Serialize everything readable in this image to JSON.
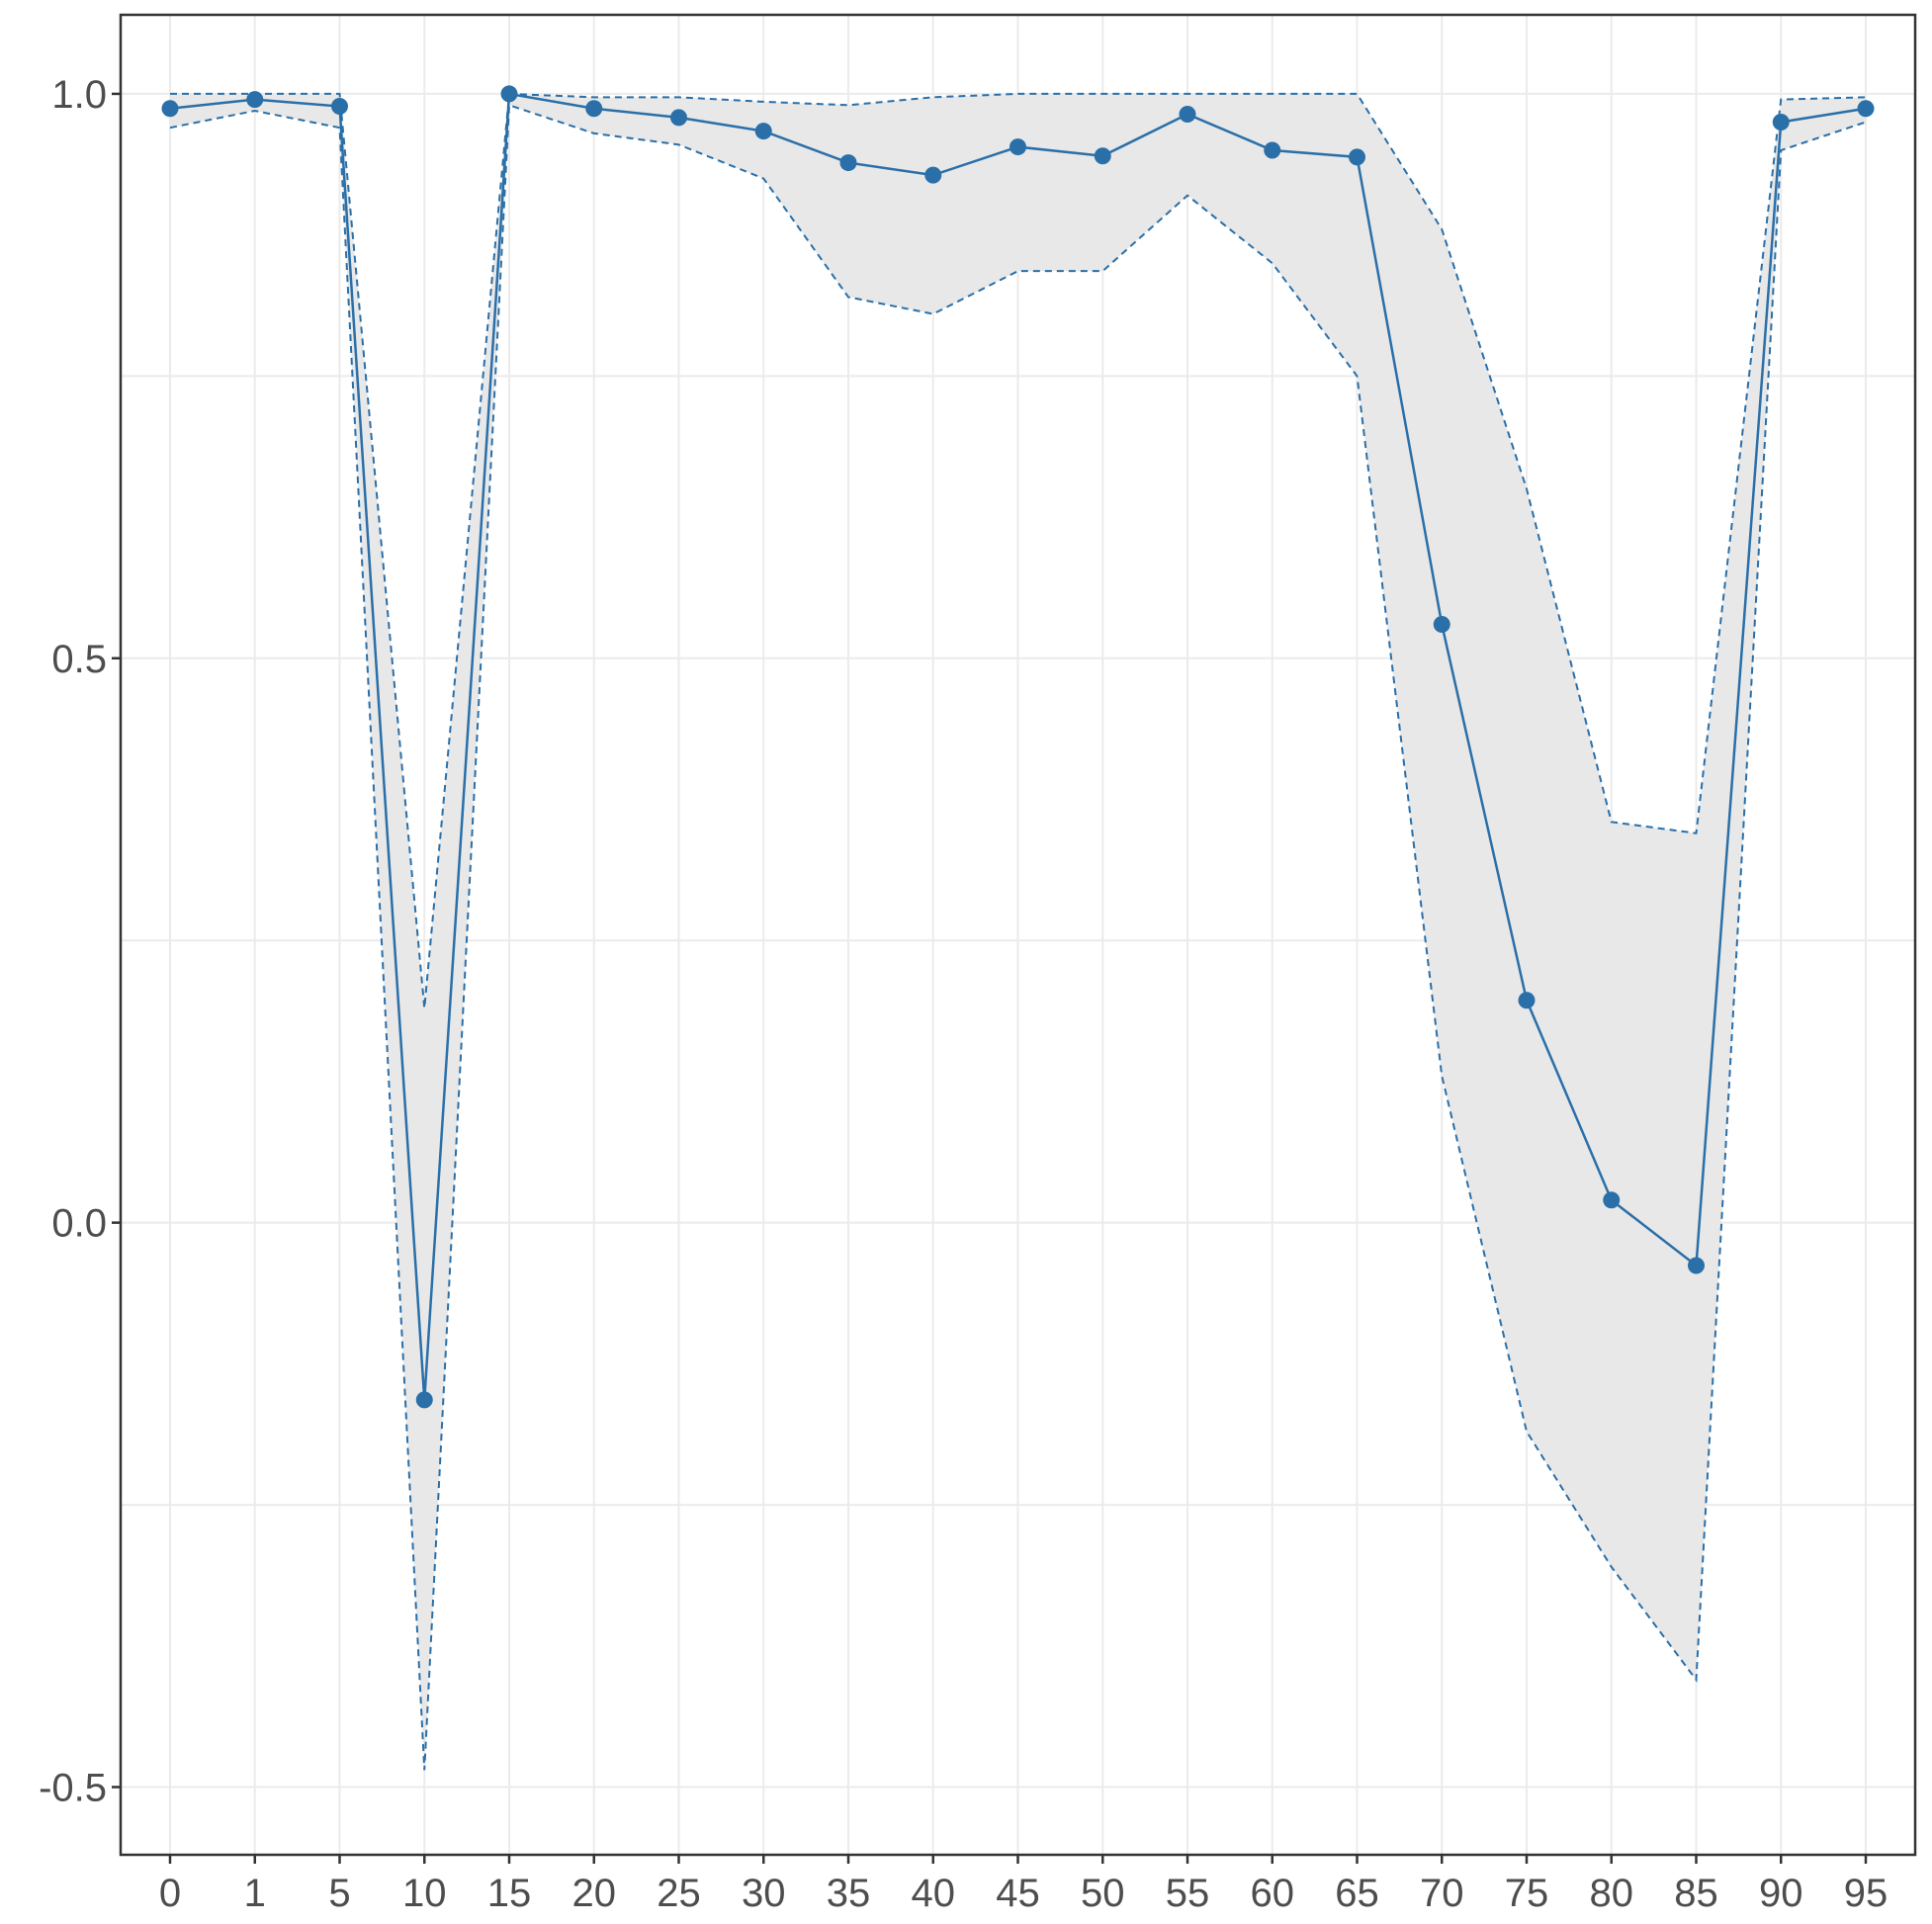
{
  "chart_data": {
    "type": "line",
    "title": "",
    "xlabel": "",
    "ylabel": "",
    "categories": [
      "0",
      "1",
      "5",
      "10",
      "15",
      "20",
      "25",
      "30",
      "35",
      "40",
      "45",
      "50",
      "55",
      "60",
      "65",
      "70",
      "75",
      "80",
      "85",
      "90",
      "95"
    ],
    "series": [
      {
        "values": [
          0.987,
          0.995,
          0.989,
          -0.157,
          1.0,
          0.987,
          0.979,
          0.967,
          0.939,
          0.928,
          0.953,
          0.945,
          0.982,
          0.95,
          0.944,
          0.53,
          0.197,
          0.02,
          -0.038,
          0.975,
          0.987
        ],
        "lower": [
          0.97,
          0.985,
          0.97,
          -0.485,
          0.99,
          0.965,
          0.955,
          0.925,
          0.82,
          0.805,
          0.843,
          0.843,
          0.91,
          0.85,
          0.75,
          0.13,
          -0.185,
          -0.305,
          -0.405,
          0.95,
          0.975
        ],
        "upper": [
          1.0,
          1.0,
          1.0,
          0.19,
          1.0,
          0.997,
          0.997,
          0.993,
          0.99,
          0.997,
          1.0,
          1.0,
          1.0,
          1.0,
          1.0,
          0.88,
          0.65,
          0.355,
          0.345,
          0.995,
          0.997
        ]
      }
    ],
    "ylim": [
      -0.56,
      1.07
    ],
    "yticks": [
      -0.5,
      0.0,
      0.5,
      1.0
    ],
    "ytick_labels": [
      "-0.5",
      "0.0",
      "0.5",
      "1.0"
    ],
    "grid": true,
    "legend": "none",
    "colors": {
      "line": "#2a6fa8",
      "band_fill": "#e8e8e8",
      "grid": "#ebebeb",
      "panel_border": "#333333",
      "tick_text": "#4d4d4d"
    }
  }
}
